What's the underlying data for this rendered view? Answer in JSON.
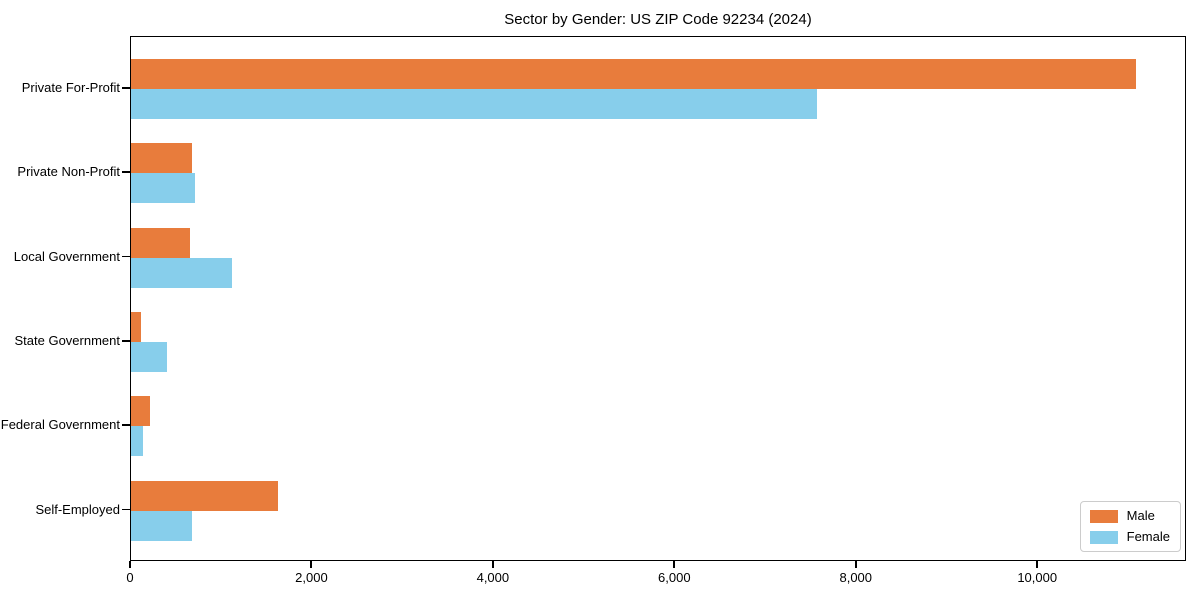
{
  "title": "Sector by Gender: US ZIP Code 92234 (2024)",
  "chart_data": {
    "type": "bar",
    "orientation": "horizontal",
    "title": "Sector by Gender: US ZIP Code 92234 (2024)",
    "xlabel": "",
    "ylabel": "",
    "categories": [
      "Private For-Profit",
      "Private Non-Profit",
      "Local Government",
      "State Government",
      "Federal Government",
      "Self-Employed"
    ],
    "series": [
      {
        "name": "Male",
        "color": "#e87c3c",
        "values": [
          11080,
          670,
          645,
          110,
          210,
          1625
        ]
      },
      {
        "name": "Female",
        "color": "#87ceeb",
        "values": [
          7560,
          710,
          1115,
          400,
          130,
          670
        ]
      }
    ],
    "xlim": [
      0,
      11640
    ],
    "xticks": [
      0,
      2000,
      4000,
      6000,
      8000,
      10000
    ],
    "xtick_labels": [
      "0",
      "2,000",
      "4,000",
      "6,000",
      "8,000",
      "10,000"
    ],
    "grid": false,
    "legend_position": "lower right"
  },
  "legend": {
    "items": [
      {
        "label": "Male",
        "color": "#e87c3c"
      },
      {
        "label": "Female",
        "color": "#87ceeb"
      }
    ]
  }
}
